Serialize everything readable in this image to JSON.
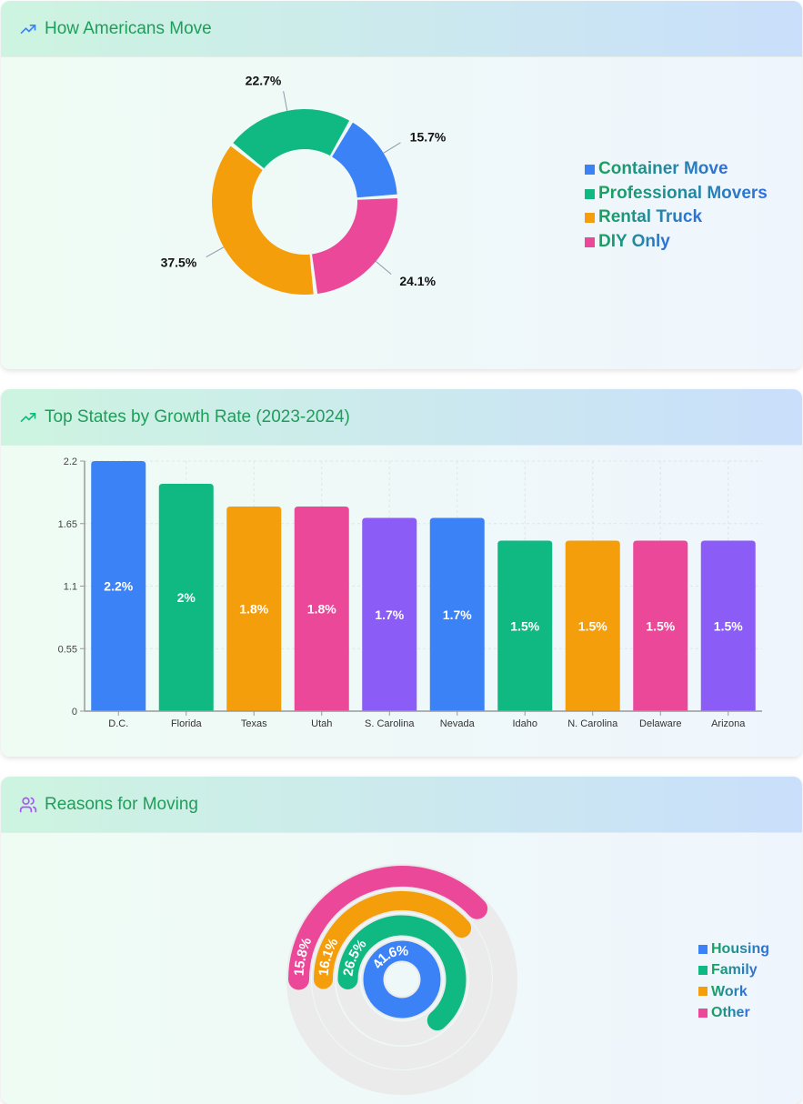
{
  "colors": {
    "blue": "#3b82f6",
    "green": "#10b981",
    "orange": "#f59e0b",
    "pink": "#ec4899",
    "purple": "#8b5cf6",
    "track": "#ebebeb"
  },
  "section1": {
    "title": "How Americans Move",
    "icon": "trending-up-icon",
    "chart_data": {
      "type": "pie",
      "donut": true,
      "slices": [
        {
          "name": "Container Move",
          "value": 15.7,
          "label": "15.7%",
          "color": "#3b82f6"
        },
        {
          "name": "DIY Only",
          "value": 24.1,
          "label": "24.1%",
          "color": "#ec4899"
        },
        {
          "name": "Rental Truck",
          "value": 37.5,
          "label": "37.5%",
          "color": "#f59e0b"
        },
        {
          "name": "Professional Movers",
          "value": 22.7,
          "label": "22.7%",
          "color": "#10b981"
        }
      ],
      "legend": [
        "Container Move",
        "Professional Movers",
        "Rental Truck",
        "DIY Only"
      ],
      "legend_colors": [
        "#3b82f6",
        "#10b981",
        "#f59e0b",
        "#ec4899"
      ],
      "legend_position": "right"
    }
  },
  "section2": {
    "title": "Top States by Growth Rate (2023-2024)",
    "icon": "trending-up-icon",
    "chart_data": {
      "type": "bar",
      "categories": [
        "D.C.",
        "Florida",
        "Texas",
        "Utah",
        "S. Carolina",
        "Nevada",
        "Idaho",
        "N. Carolina",
        "Delaware",
        "Arizona"
      ],
      "values": [
        2.2,
        2.0,
        1.8,
        1.8,
        1.7,
        1.7,
        1.5,
        1.5,
        1.5,
        1.5
      ],
      "labels": [
        "2.2%",
        "2%",
        "1.8%",
        "1.8%",
        "1.7%",
        "1.7%",
        "1.5%",
        "1.5%",
        "1.5%",
        "1.5%"
      ],
      "colors": [
        "#3b82f6",
        "#10b981",
        "#f59e0b",
        "#ec4899",
        "#8b5cf6",
        "#3b82f6",
        "#10b981",
        "#f59e0b",
        "#ec4899",
        "#8b5cf6"
      ],
      "ylim": [
        0,
        2.2
      ],
      "yticks": [
        "0",
        "0.55",
        "1.1",
        "1.65",
        "2.2"
      ],
      "grid": true
    }
  },
  "section3": {
    "title": "Reasons for Moving",
    "icon": "users-icon",
    "chart_data": {
      "type": "radial-bar",
      "series": [
        {
          "name": "Housing",
          "value": 41.6,
          "label": "41.6%",
          "color": "#3b82f6"
        },
        {
          "name": "Family",
          "value": 26.5,
          "label": "26.5%",
          "color": "#10b981"
        },
        {
          "name": "Work",
          "value": 16.1,
          "label": "16.1%",
          "color": "#f59e0b"
        },
        {
          "name": "Other",
          "value": 15.8,
          "label": "15.8%",
          "color": "#ec4899"
        }
      ],
      "legend_position": "right"
    }
  }
}
